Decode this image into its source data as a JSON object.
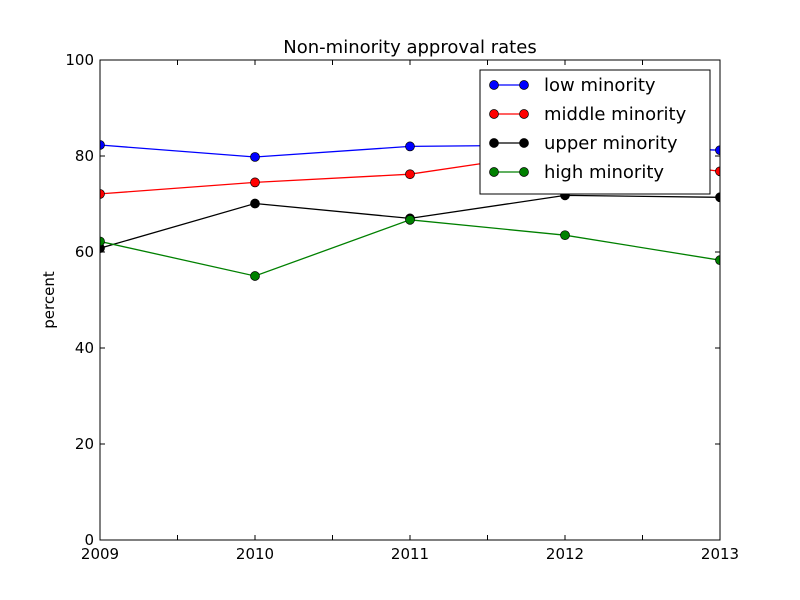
{
  "chart_data": {
    "type": "line",
    "title": "Non-minority approval rates",
    "xlabel": "",
    "ylabel": "percent",
    "x": [
      2009,
      2010,
      2011,
      2012,
      2013
    ],
    "xlim": [
      2009,
      2013
    ],
    "ylim": [
      0,
      100
    ],
    "xticks": [
      2009,
      2009.5,
      2010,
      2010.5,
      2011,
      2011.5,
      2012,
      2012.5,
      2013
    ],
    "xtick_labels": [
      "2009",
      "",
      "2010",
      "",
      "2011",
      "",
      "2012",
      "",
      "2013"
    ],
    "yticks": [
      0,
      20,
      40,
      60,
      80,
      100
    ],
    "ytick_labels": [
      "0",
      "20",
      "40",
      "60",
      "80",
      "100"
    ],
    "grid": false,
    "legend_position": "top-right",
    "series": [
      {
        "name": "low minority",
        "color": "#0000ff",
        "values": [
          82.3,
          79.8,
          82.0,
          82.3,
          81.2
        ]
      },
      {
        "name": "middle minority",
        "color": "#ff0000",
        "values": [
          72.1,
          74.5,
          76.2,
          81.0,
          76.8
        ]
      },
      {
        "name": "upper minority",
        "color": "#000000",
        "values": [
          60.8,
          70.1,
          67.0,
          71.8,
          71.4
        ]
      },
      {
        "name": "high minority",
        "color": "#008000",
        "values": [
          62.2,
          55.0,
          66.7,
          63.5,
          58.3
        ]
      }
    ]
  }
}
